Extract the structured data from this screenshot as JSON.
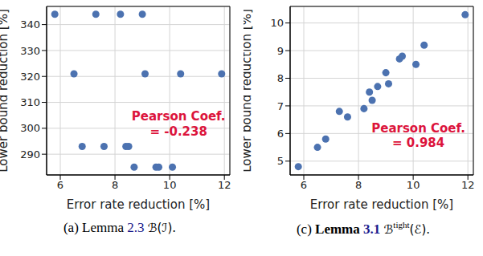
{
  "chart_data": [
    {
      "type": "scatter",
      "xlabel": "Error rate reduction [%]",
      "ylabel": "Lower bound reduction [%]",
      "x": [
        5.8,
        7.3,
        8.2,
        9.0,
        6.5,
        9.1,
        10.4,
        11.9,
        6.8,
        7.6,
        8.4,
        8.5,
        8.7,
        9.5,
        9.6,
        10.1
      ],
      "values": [
        344,
        344,
        344,
        344,
        321,
        321,
        321,
        321,
        293,
        293,
        293,
        293,
        285,
        285,
        285,
        285
      ],
      "color": "#4c72b0",
      "marker": "circle",
      "grid": true,
      "xlim": [
        5.5,
        12.2
      ],
      "xticks": [
        6,
        8,
        10,
        12
      ],
      "ylim": [
        282,
        347
      ],
      "yticks": [
        290,
        300,
        310,
        320,
        330,
        340
      ],
      "annotation": {
        "lines": [
          "Pearson Coef.",
          "= -0.238"
        ],
        "color": "#dc143c"
      },
      "caption": {
        "label": "(a)",
        "lemma": "Lemma",
        "ref": "2.3",
        "bold": false,
        "symbol": "ℬ",
        "arg": "(ℐ)."
      }
    },
    {
      "type": "scatter",
      "xlabel": "Error rate reduction [%]",
      "ylabel": "Lower bound reduction [%]",
      "x": [
        5.8,
        6.5,
        6.8,
        7.3,
        7.6,
        8.2,
        8.4,
        8.5,
        8.7,
        9.0,
        9.1,
        9.5,
        9.6,
        10.1,
        10.4,
        11.9
      ],
      "values": [
        4.8,
        5.5,
        5.8,
        6.8,
        6.6,
        6.9,
        7.5,
        7.2,
        7.7,
        8.2,
        7.8,
        8.7,
        8.8,
        8.5,
        9.2,
        10.3
      ],
      "color": "#4c72b0",
      "marker": "circle",
      "grid": true,
      "xlim": [
        5.5,
        12.2
      ],
      "xticks": [
        6,
        8,
        10,
        12
      ],
      "ylim": [
        4.5,
        10.6
      ],
      "yticks": [
        5,
        6,
        7,
        8,
        9,
        10
      ],
      "annotation": {
        "lines": [
          "Pearson Coef.",
          "= 0.984"
        ],
        "color": "#dc143c"
      },
      "caption": {
        "label": "(c)",
        "lemma": "Lemma",
        "ref": "3.1",
        "bold": true,
        "symbol": "ℬ",
        "sup": "tight",
        "arg": "(ℰ)."
      }
    }
  ]
}
